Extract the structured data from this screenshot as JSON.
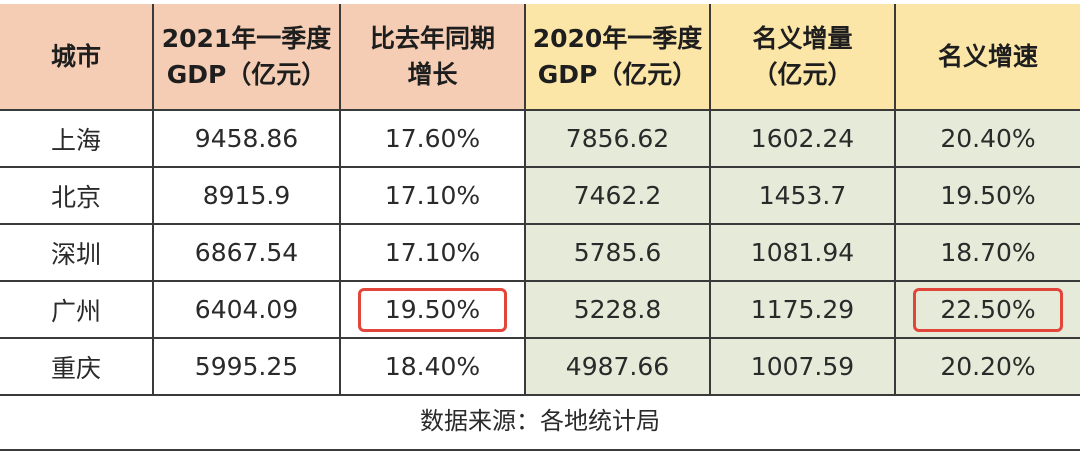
{
  "table": {
    "headers": [
      {
        "lines": [
          "城市"
        ]
      },
      {
        "lines": [
          "2021年一季度",
          "GDP（亿元）"
        ]
      },
      {
        "lines": [
          "比去年同期",
          "增长"
        ]
      },
      {
        "lines": [
          "2020年一季度",
          "GDP（亿元）"
        ]
      },
      {
        "lines": [
          "名义增量",
          "（亿元）"
        ]
      },
      {
        "lines": [
          "名义增速"
        ]
      }
    ],
    "rows": [
      {
        "city": "上海",
        "gdp_2021q1": "9458.86",
        "yoy_growth": "17.60%",
        "gdp_2020q1": "7856.62",
        "nominal_increase": "1602.24",
        "nominal_growth": "20.40%"
      },
      {
        "city": "北京",
        "gdp_2021q1": "8915.9",
        "yoy_growth": "17.10%",
        "gdp_2020q1": "7462.2",
        "nominal_increase": "1453.7",
        "nominal_growth": "19.50%"
      },
      {
        "city": "深圳",
        "gdp_2021q1": "6867.54",
        "yoy_growth": "17.10%",
        "gdp_2020q1": "5785.6",
        "nominal_increase": "1081.94",
        "nominal_growth": "18.70%"
      },
      {
        "city": "广州",
        "gdp_2021q1": "6404.09",
        "yoy_growth": "19.50%",
        "gdp_2020q1": "5228.8",
        "nominal_increase": "1175.29",
        "nominal_growth": "22.50%"
      },
      {
        "city": "重庆",
        "gdp_2021q1": "5995.25",
        "yoy_growth": "18.40%",
        "gdp_2020q1": "4987.66",
        "nominal_increase": "1007.59",
        "nominal_growth": "20.20%"
      }
    ],
    "highlights": [
      {
        "row": 3,
        "column": "yoy_growth"
      },
      {
        "row": 3,
        "column": "nominal_growth"
      }
    ]
  },
  "footer": {
    "source_label": "数据来源：",
    "source_value": "各地统计局"
  },
  "colors": {
    "header_peach": "#f4cdb4",
    "header_yellow": "#fbe6a8",
    "cell_green": "#e6ead9",
    "highlight_border": "#e2463a",
    "grid_line": "#3a3a3a"
  }
}
